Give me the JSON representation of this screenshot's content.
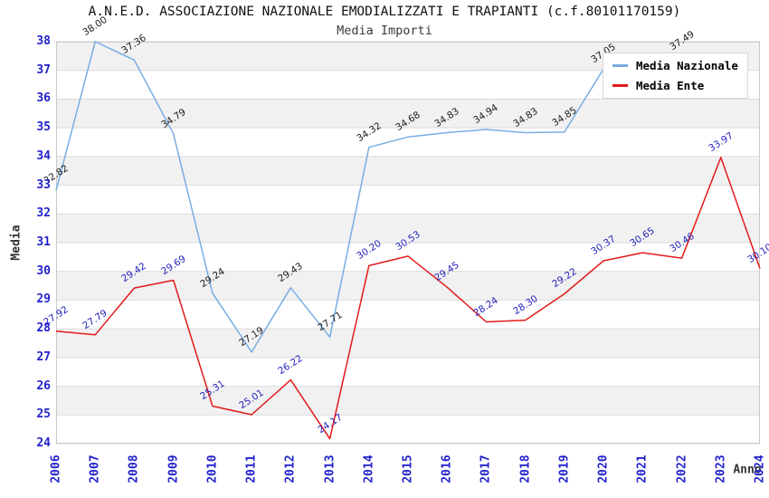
{
  "title": "A.N.E.D. ASSOCIAZIONE NAZIONALE EMODIALIZZATI E TRAPIANTI (c.f.80101170159)",
  "subtitle": "Media Importi",
  "axes": {
    "y_label": "Media",
    "x_label": "Anno",
    "y_ticks": [
      38,
      37,
      36,
      35,
      34,
      33,
      32,
      31,
      30,
      29,
      28,
      27,
      26,
      25,
      24
    ],
    "x_ticks": [
      "2006",
      "2007",
      "2008",
      "2009",
      "2010",
      "2011",
      "2012",
      "2013",
      "2014",
      "2015",
      "2016",
      "2017",
      "2018",
      "2019",
      "2020",
      "2021",
      "2022",
      "2023",
      "2024"
    ]
  },
  "legend": {
    "items": [
      {
        "label": "Media Nazionale",
        "color": "#78ade3"
      },
      {
        "label": "Media Ente",
        "color": "#e31a1a"
      }
    ]
  },
  "colors": {
    "tick_blue": "#2222cc",
    "nazionale_line": "#78ade3",
    "ente_line": "#e31a1a",
    "nazionale_label_text": "#1a1a1a",
    "ente_label_text": "#2222be",
    "band_gray": "#f1f1f1",
    "grid_line": "#dbdbdb",
    "plot_border": "#c9c9c9"
  },
  "chart_data": {
    "type": "line",
    "x": [
      "2006",
      "2007",
      "2008",
      "2009",
      "2010",
      "2011",
      "2012",
      "2013",
      "2014",
      "2015",
      "2016",
      "2017",
      "2018",
      "2019",
      "2020",
      "2021",
      "2022",
      "2023",
      "2024"
    ],
    "series": [
      {
        "name": "Media Nazionale",
        "color": "#78ade3",
        "label_color": "#1a1a1a",
        "values": [
          32.82,
          38.0,
          37.36,
          34.79,
          29.24,
          27.19,
          29.43,
          27.71,
          34.32,
          34.68,
          34.83,
          34.94,
          34.83,
          34.85,
          37.05,
          null,
          37.49,
          null,
          null
        ]
      },
      {
        "name": "Media Ente",
        "color": "#e31a1a",
        "label_color": "#2222be",
        "values": [
          27.92,
          27.79,
          29.42,
          29.69,
          25.31,
          25.01,
          26.22,
          24.17,
          30.2,
          30.53,
          29.45,
          28.24,
          28.3,
          29.22,
          30.37,
          30.65,
          30.46,
          33.97,
          30.1
        ]
      }
    ],
    "title": "Media Importi",
    "xlabel": "Anno",
    "ylabel": "Media",
    "ylim": [
      24,
      38
    ],
    "grid": "horizontal gridlines with alternating gray/white bands",
    "legend_position": "top-right",
    "notes": "Media Nazionale values for 2021, 2023, 2024 are hidden behind the legend / absent"
  }
}
